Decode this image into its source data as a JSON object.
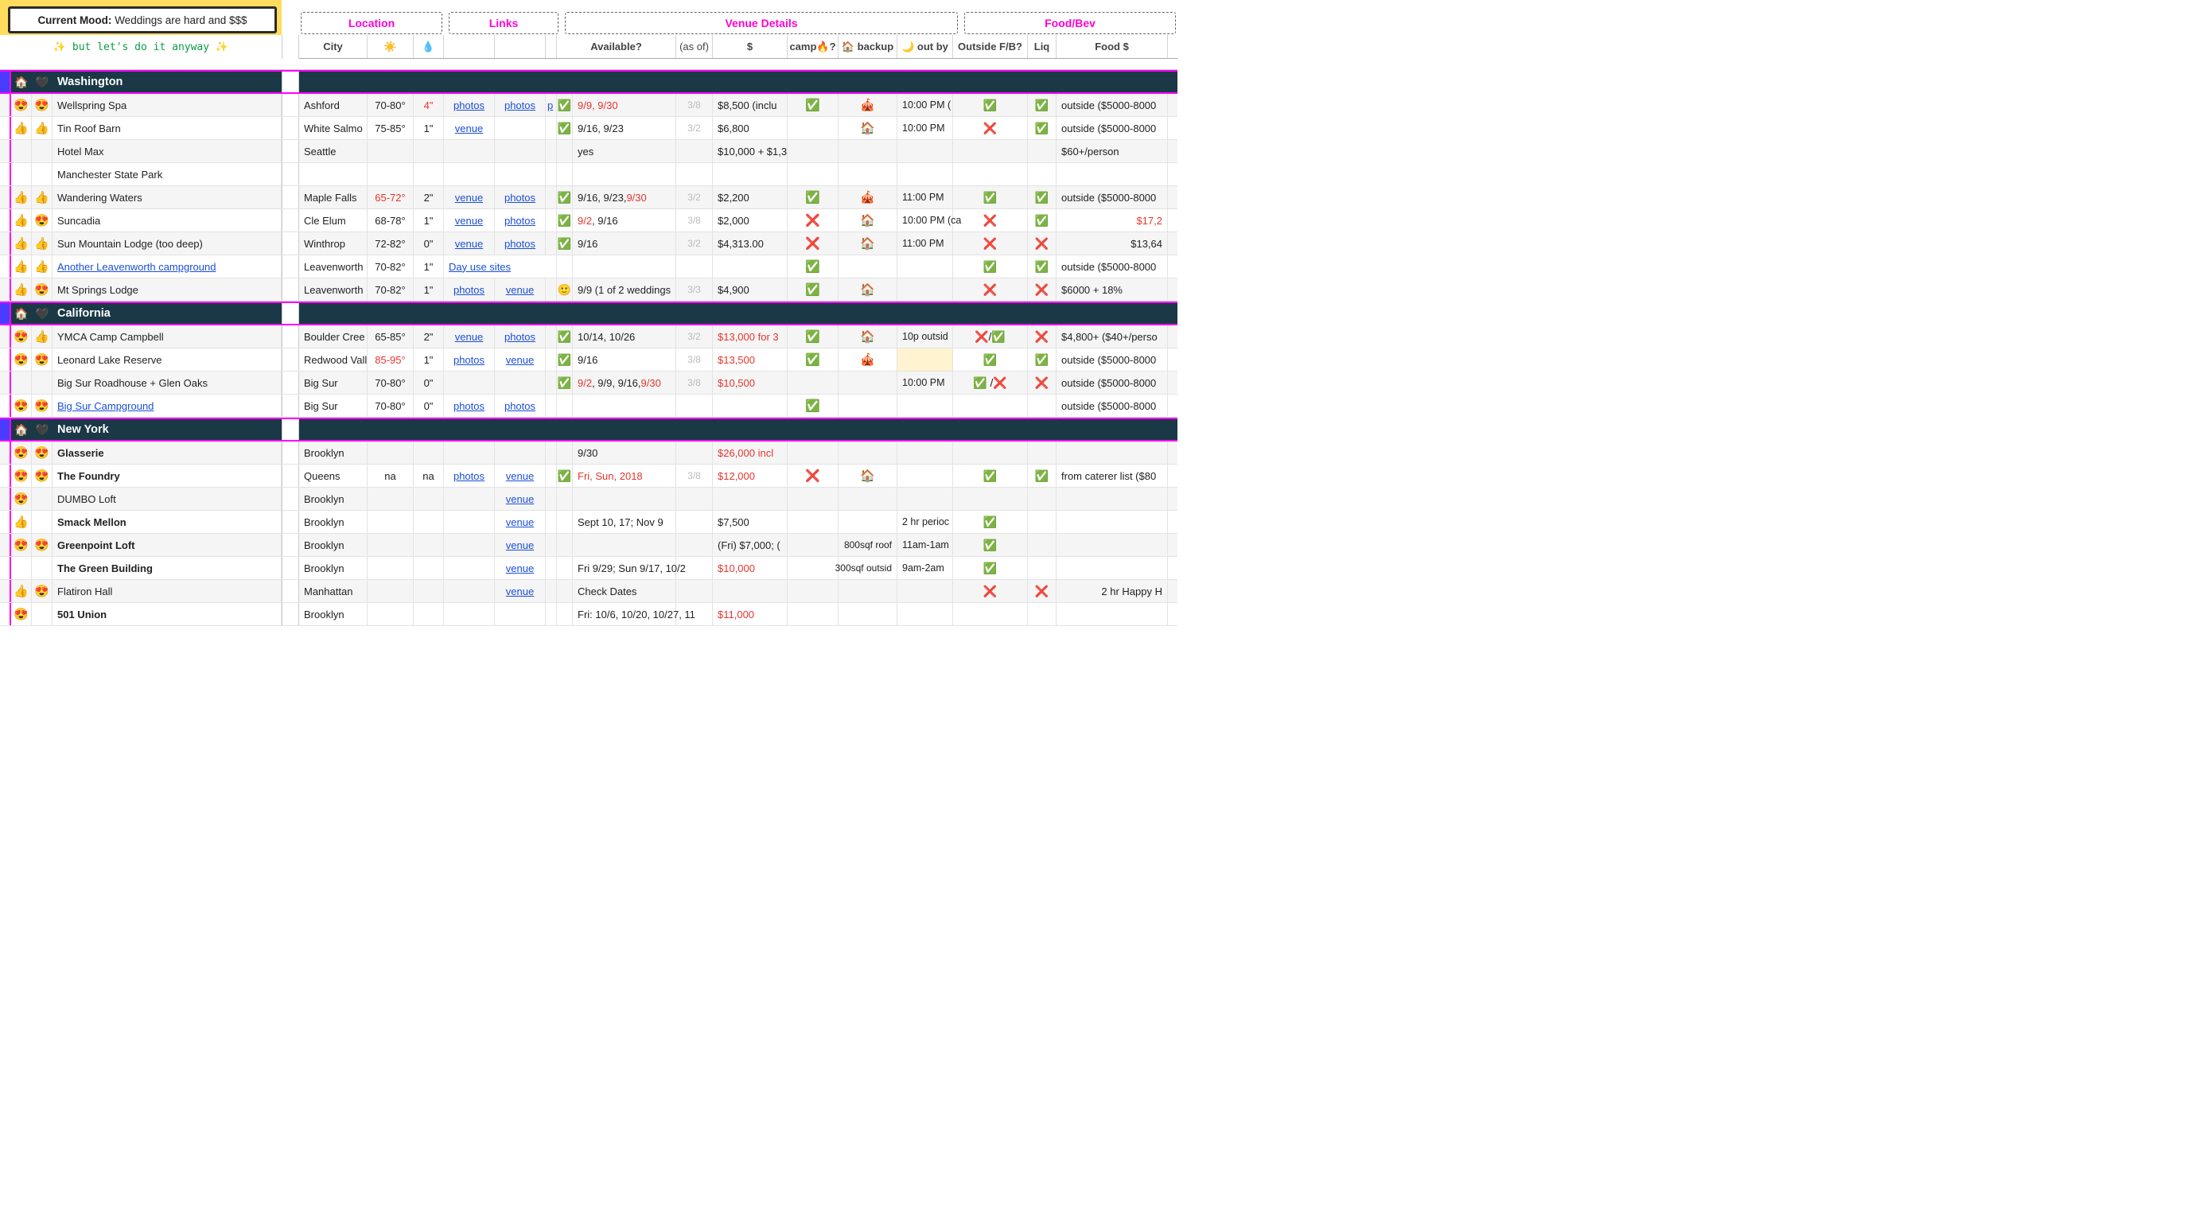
{
  "mood": {
    "label": "Current Mood:",
    "text": "Weddings are hard and $$$"
  },
  "sparkle": "✨ but let's do it anyway ✨",
  "group_headers": {
    "location": "Location",
    "links": "Links",
    "venue": "Venue Details",
    "food": "Food/Bev"
  },
  "col_headers": {
    "city": "City",
    "temp": "☀️",
    "rain": "💧",
    "avail": "Available?",
    "asof": "(as of)",
    "price": "$",
    "camp": "camp🔥?",
    "backup": "🏠 backup",
    "out": "🌙 out by",
    "fb": "Outside F/B?",
    "liq": "Liq",
    "food": "Food $"
  },
  "colors": {
    "magenta": "#ff00d4",
    "red": "#e5352f",
    "link": "#1a4fd6",
    "section_bg": "#1a3845",
    "accent": "#4a3cff",
    "banner": "#ffdc5e",
    "green_mono": "#0a9d46",
    "gray": "#bbbbbb",
    "row_alt": "#f5f5f5"
  },
  "icons": {
    "check": "✅",
    "cross": "❌",
    "tent": "🎪",
    "house": "🏠",
    "smile": "🙂"
  },
  "sections": [
    {
      "name": "Washington",
      "icons": [
        "🏠",
        "🖤"
      ],
      "rows": [
        {
          "e1": "😍",
          "e2": "😍",
          "name": "Wellspring Spa",
          "city": "Ashford",
          "temp": "70-80°",
          "rain": "4\"",
          "rain_red": true,
          "l1": "photos",
          "l2": "photos",
          "l3": "p",
          "avf": "✅",
          "avail": "9/9, 9/30",
          "avail_red": true,
          "asof": "3/8",
          "price": "$8,500 (inclu",
          "camp": "✅",
          "backup": "🎪",
          "out": "10:00 PM (",
          "fb": "✅",
          "liq": "✅",
          "food": "outside ($5000-8000",
          "alt": true
        },
        {
          "e1": "👍",
          "e2": "👍",
          "name": "Tin Roof Barn",
          "city": "White Salmo",
          "temp": "75-85°",
          "rain": "1\"",
          "l1": "venue",
          "avf": "✅",
          "avail": "9/16, 9/23",
          "asof": "3/2",
          "price": "$6,800",
          "backup": "🏠",
          "out": "10:00 PM",
          "fb": "❌",
          "liq": "✅",
          "food": "outside ($5000-8000"
        },
        {
          "name": "Hotel Max",
          "city": "Seattle",
          "avail": "yes",
          "price": "$10,000 + $1,3",
          "food": "$60+/person",
          "alt": true
        },
        {
          "name": "Manchester State Park"
        },
        {
          "e1": "👍",
          "e2": "👍",
          "name": "Wandering Waters",
          "city": "Maple Falls",
          "temp": "65-72°",
          "temp_red": true,
          "rain": "2\"",
          "l1": "venue",
          "l2": "photos",
          "avf": "✅",
          "avail_html": "9/16, 9/23, <span class='red'>9/30</span>",
          "asof": "3/2",
          "price": "$2,200",
          "camp": "✅",
          "backup": "🎪",
          "out": "11:00 PM",
          "fb": "✅",
          "liq": "✅",
          "food": "outside ($5000-8000",
          "alt": true
        },
        {
          "e1": "👍",
          "e2": "😍",
          "name": "Suncadia",
          "city": "Cle Elum",
          "temp": "68-78°",
          "rain": "1\"",
          "l1": "venue",
          "l2": "photos",
          "avf": "✅",
          "avail_html": "<span class='red'>9/2</span>, 9/16",
          "asof": "3/8",
          "price": "$2,000",
          "camp": "❌",
          "backup": "🏠",
          "out": "10:00 PM (ca",
          "fb": "❌",
          "liq": "✅",
          "food": "$17,2",
          "food_red": true,
          "food_right": true
        },
        {
          "e1": "👍",
          "e2": "👍",
          "name": "Sun Mountain Lodge (too deep)",
          "city": "Winthrop",
          "temp": "72-82°",
          "rain": "0\"",
          "l1": "venue",
          "l2": "photos",
          "avf": "✅",
          "avail": "9/16",
          "asof": "3/2",
          "price": "$4,313.00",
          "camp": "❌",
          "backup": "🏠",
          "out": "11:00 PM",
          "fb": "❌",
          "liq": "❌",
          "food": "$13,64",
          "food_right": true,
          "alt": true
        },
        {
          "e1": "👍",
          "e2": "👍",
          "name": "Another Leavenworth campground",
          "name_link": true,
          "city": "Leavenworth",
          "temp": "70-82°",
          "rain": "1\"",
          "l1": "Day use sites",
          "l1_span": true,
          "camp": "✅",
          "fb": "✅",
          "liq": "✅",
          "food": "outside ($5000-8000"
        },
        {
          "e1": "👍",
          "e2": "😍",
          "name": "Mt Springs Lodge",
          "city": "Leavenworth",
          "temp": "70-82°",
          "rain": "1\"",
          "l1": "photos",
          "l2": "venue",
          "avf": "🙂",
          "avail": "9/9 (1 of 2 weddings",
          "asof": "3/3",
          "price": "$4,900",
          "camp": "✅",
          "backup": "🏠",
          "fb": "❌",
          "liq": "❌",
          "food": "$6000 + 18%",
          "alt": true
        }
      ]
    },
    {
      "name": "California",
      "icons": [
        "🏠",
        "🖤"
      ],
      "rows": [
        {
          "e1": "😍",
          "e2": "👍",
          "name": "YMCA Camp Campbell",
          "city": "Boulder Cree",
          "temp": "65-85°",
          "rain": "2\"",
          "l1": "venue",
          "l2": "photos",
          "avf": "✅",
          "avail": "10/14, 10/26",
          "asof": "3/2",
          "price": "$13,000 for 3",
          "price_red": true,
          "camp": "✅",
          "backup": "🏠",
          "out": "10p outsid",
          "fb": "❌/✅",
          "liq": "❌",
          "food": "$4,800+ ($40+/perso",
          "alt": true
        },
        {
          "e1": "😍",
          "e2": "😍",
          "name": "Leonard Lake Reserve",
          "city": "Redwood Vall",
          "temp": "85-95°",
          "temp_red": true,
          "rain": "1\"",
          "l1": "photos",
          "l2": "venue",
          "avf": "✅",
          "avail": "9/16",
          "asof": "3/8",
          "price": "$13,500",
          "price_red": true,
          "camp": "✅",
          "backup": "🎪",
          "out_hl": true,
          "fb": "✅",
          "liq": "✅",
          "food": "outside ($5000-8000"
        },
        {
          "name": "Big Sur Roadhouse + Glen Oaks",
          "city": "Big Sur",
          "temp": "70-80°",
          "rain": "0\"",
          "avf": "✅",
          "avail_html": "<span class='red'>9/2</span>, 9/9, 9/16, <span class='red'>9/30</span>",
          "asof": "3/8",
          "price": "$10,500",
          "price_red": true,
          "out": "10:00 PM",
          "fb": "✅ /❌",
          "liq": "❌",
          "food": "outside ($5000-8000",
          "alt": true
        },
        {
          "e1": "😍",
          "e2": "😍",
          "name": "Big Sur Campground",
          "name_link": true,
          "city": "Big Sur",
          "temp": "70-80°",
          "rain": "0\"",
          "l1": "photos",
          "l2": "photos",
          "camp": "✅",
          "food": "outside ($5000-8000"
        }
      ]
    },
    {
      "name": "New York",
      "icons": [
        "🏠",
        "🖤"
      ],
      "rows": [
        {
          "e1": "😍",
          "e2": "😍",
          "name": "Glasserie",
          "bold": true,
          "city": "Brooklyn",
          "avail": "9/30",
          "price": "$26,000 incl",
          "price_red": true,
          "alt": true
        },
        {
          "e1": "😍",
          "e2": "😍",
          "name": "The Foundry",
          "bold": true,
          "city": "Queens",
          "temp": "na",
          "rain": "na",
          "l1": "photos",
          "l2": "venue",
          "avf": "✅",
          "avail": "Fri, Sun, 2018",
          "avail_red": true,
          "asof": "3/8",
          "price": "$12,000",
          "price_red": true,
          "camp": "❌",
          "backup": "🏠",
          "fb": "✅",
          "liq": "✅",
          "food": "from caterer list ($80"
        },
        {
          "e1": "😍",
          "name": "DUMBO Loft",
          "city": "Brooklyn",
          "l2": "venue",
          "alt": true
        },
        {
          "e1": "👍",
          "name": "Smack Mellon",
          "bold": true,
          "city": "Brooklyn",
          "l2": "venue",
          "avail": "Sept 10, 17; Nov 9",
          "price": "$7,500",
          "out": "2 hr perioc",
          "fb": "✅"
        },
        {
          "e1": "😍",
          "e2": "😍",
          "name": "Greenpoint Loft",
          "bold": true,
          "city": "Brooklyn",
          "l2": "venue",
          "price": "(Fri) $7,000; (",
          "backup": "800sqf roof",
          "backup_text": true,
          "out": "11am-1am",
          "fb": "✅",
          "alt": true
        },
        {
          "name": "The Green Building",
          "bold": true,
          "city": "Brooklyn",
          "l2": "venue",
          "avail": "Fri 9/29; Sun 9/17, 10/2",
          "price": "$10,000",
          "price_red": true,
          "backup": "300sqf outsid",
          "backup_text": true,
          "out": "9am-2am",
          "fb": "✅"
        },
        {
          "e1": "👍",
          "e2": "😍",
          "name": "Flatiron Hall",
          "city": "Manhattan",
          "l2": "venue",
          "avail": "Check Dates",
          "fb": "❌",
          "liq": "❌",
          "food": "2 hr Happy H",
          "food_right": true,
          "alt": true
        },
        {
          "e1": "😍",
          "name": "501 Union",
          "bold": true,
          "city": "Brooklyn",
          "avail": "Fri: 10/6, 10/20, 10/27, 11",
          "price": "$11,000",
          "price_red": true
        }
      ]
    }
  ]
}
